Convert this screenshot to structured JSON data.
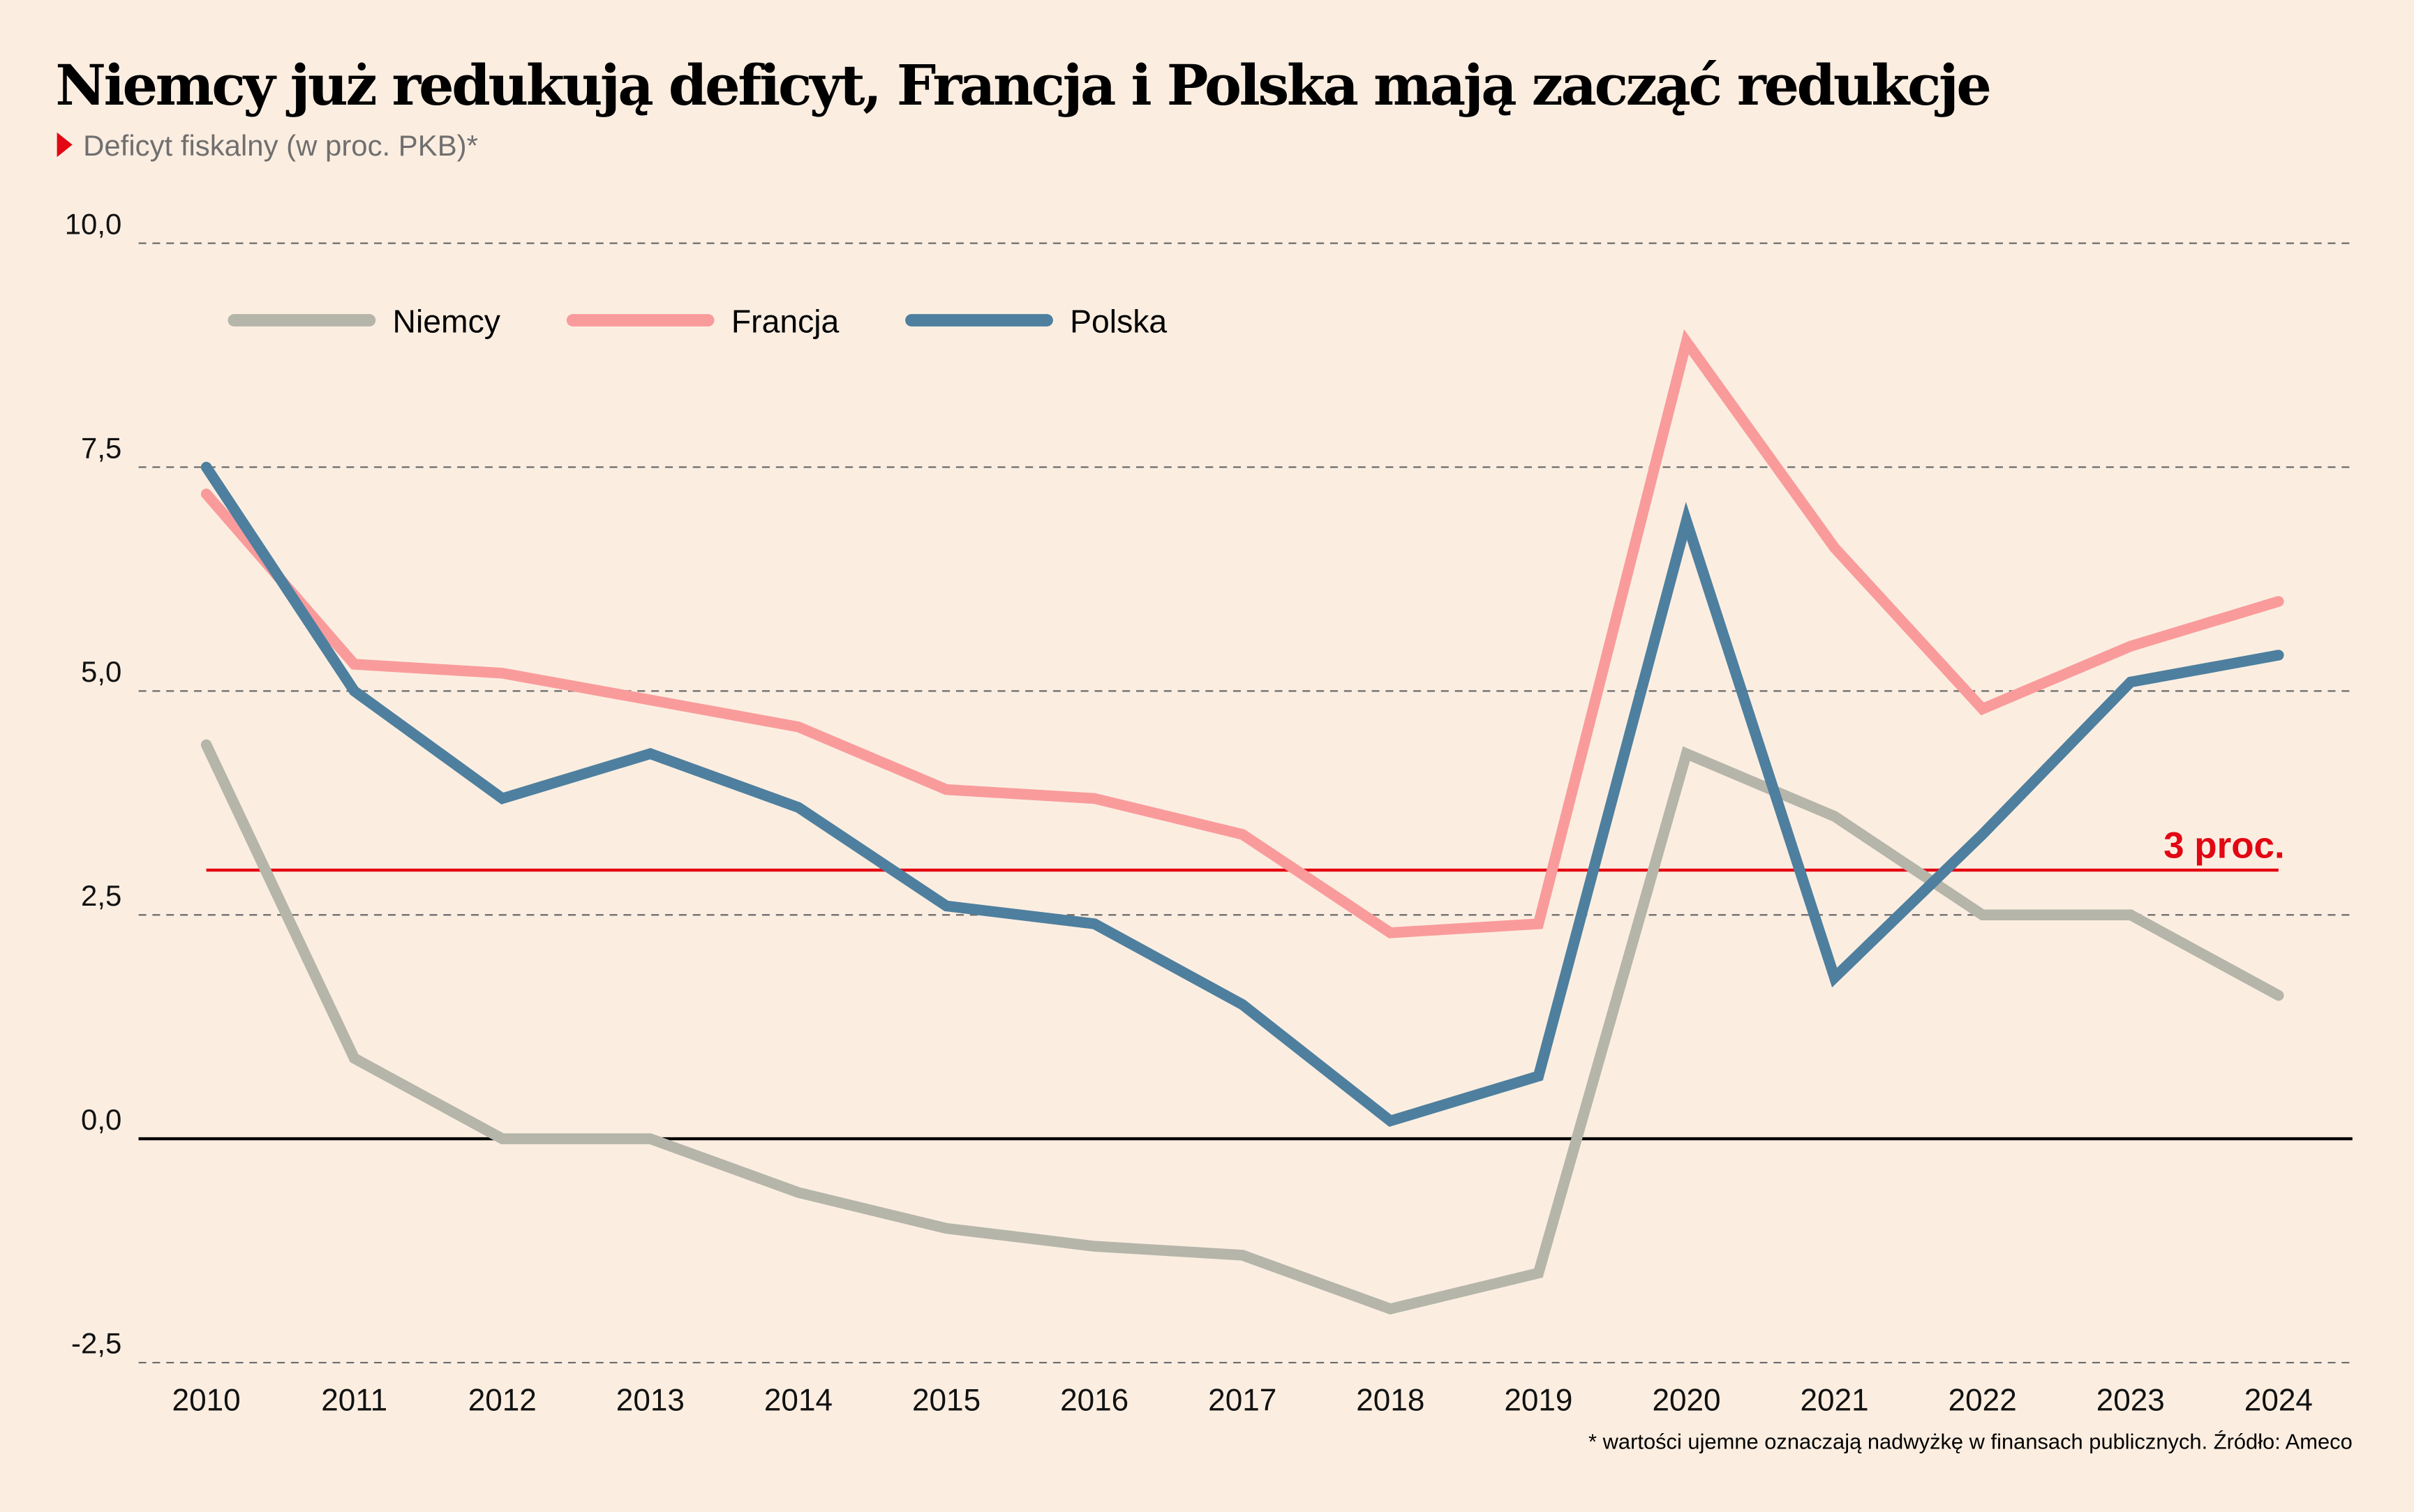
{
  "chart_data": {
    "type": "line",
    "title": "Niemcy już redukują deficyt, Francja i Polska mają zacząć redukcje",
    "subtitle": "Deficyt fiskalny (w proc. PKB)*",
    "xlabel": "",
    "ylabel": "",
    "x": [
      "2010",
      "2011",
      "2012",
      "2013",
      "2014",
      "2015",
      "2016",
      "2017",
      "2018",
      "2019",
      "2020",
      "2021",
      "2022",
      "2023",
      "2024"
    ],
    "ylim": [
      -2.5,
      10.0
    ],
    "yticks": [
      {
        "value": 10.0,
        "label": "10,0"
      },
      {
        "value": 7.5,
        "label": "7,5"
      },
      {
        "value": 5.0,
        "label": "5,0"
      },
      {
        "value": 2.5,
        "label": "2,5"
      },
      {
        "value": 0.0,
        "label": "0,0"
      },
      {
        "value": -2.5,
        "label": "-2,5"
      }
    ],
    "grid": true,
    "legend_position": "top-left",
    "series": [
      {
        "name": "Niemcy",
        "color": "#B5B5AA",
        "values": [
          4.4,
          0.9,
          0.0,
          0.0,
          -0.6,
          -1.0,
          -1.2,
          -1.3,
          -1.9,
          -1.5,
          4.3,
          3.6,
          2.5,
          2.5,
          1.6
        ]
      },
      {
        "name": "Francja",
        "color": "#FA9B9B",
        "values": [
          7.2,
          5.3,
          5.2,
          4.9,
          4.6,
          3.9,
          3.8,
          3.4,
          2.3,
          2.4,
          8.9,
          6.6,
          4.8,
          5.5,
          6.0
        ]
      },
      {
        "name": "Polska",
        "color": "#4E7F9E",
        "values": [
          7.5,
          5.0,
          3.8,
          4.3,
          3.7,
          2.6,
          2.4,
          1.5,
          0.2,
          0.7,
          6.9,
          1.8,
          3.4,
          5.1,
          5.4
        ]
      }
    ],
    "reference_line": {
      "value": 3.0,
      "label": "3 proc.",
      "color": "#E30613"
    },
    "annotations": [
      "3 proc."
    ],
    "footnote": "* wartości ujemne oznaczają nadwyżkę w finansach publicznych. Źródło: Ameco",
    "subtitle_marker_color": "#E30613"
  }
}
